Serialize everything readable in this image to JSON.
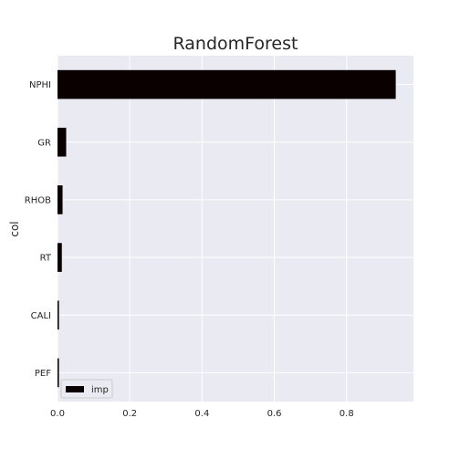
{
  "chart_data": {
    "type": "bar",
    "orientation": "horizontal",
    "title": "RandomForest",
    "xlabel": "",
    "ylabel": "col",
    "categories": [
      "NPHI",
      "GR",
      "RHOB",
      "RT",
      "CALI",
      "PEF"
    ],
    "series": [
      {
        "name": "imp",
        "values": [
          0.936,
          0.024,
          0.014,
          0.012,
          0.004,
          0.004
        ]
      }
    ],
    "xlim": [
      0,
      0.985
    ],
    "xticks": [
      "0.0",
      "0.2",
      "0.4",
      "0.6",
      "0.8"
    ],
    "grid": true,
    "legend_position": "lower-left",
    "colors": {
      "bar": "#0a0000",
      "plot_background": "#eaeaf2",
      "grid": "#ffffff",
      "text": "#262626"
    }
  }
}
